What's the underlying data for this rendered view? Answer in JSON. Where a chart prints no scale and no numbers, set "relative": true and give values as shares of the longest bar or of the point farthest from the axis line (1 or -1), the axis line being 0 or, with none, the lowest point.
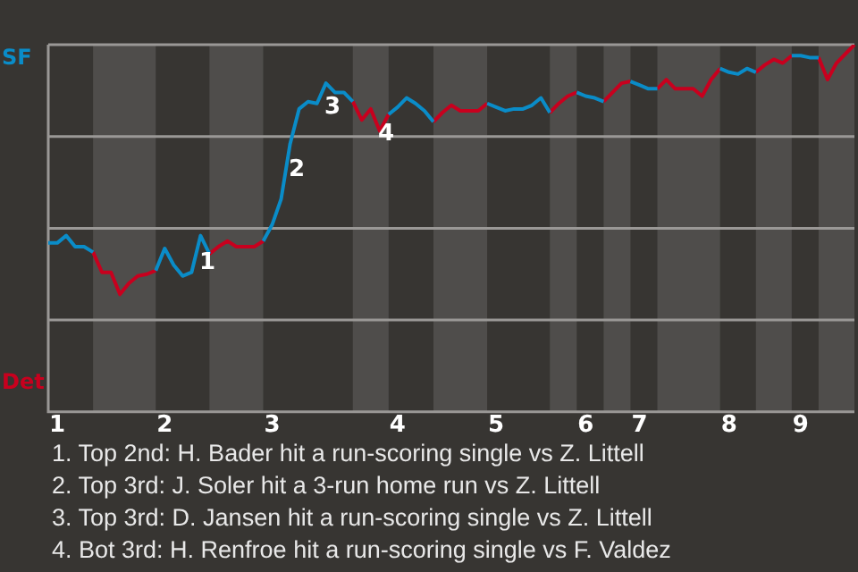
{
  "chart_data": {
    "type": "line",
    "relative": true,
    "grid": "y",
    "marker": "none",
    "line_style": "solid",
    "categories": [
      null,
      "1",
      null,
      null,
      null,
      null,
      null,
      null,
      null,
      null,
      null,
      null,
      null,
      "2",
      null,
      null,
      null,
      null,
      null,
      null,
      null,
      null,
      null,
      null,
      null,
      "3",
      null,
      null,
      null,
      null,
      null,
      null,
      null,
      null,
      null,
      null,
      null,
      null,
      null,
      "4",
      null,
      null,
      null,
      null,
      null,
      null,
      null,
      null,
      null,
      null,
      "5",
      null,
      null,
      null,
      null,
      null,
      null,
      null,
      null,
      null,
      "6",
      null,
      null,
      null,
      null,
      null,
      "7",
      null,
      null,
      null,
      null,
      null,
      null,
      null,
      null,
      null,
      "8",
      null,
      null,
      null,
      null,
      null,
      null,
      null,
      "9",
      null,
      null,
      null,
      null,
      null,
      null
    ],
    "series": [
      {
        "name": "SF",
        "color": "#0a8cc8",
        "values": [
          0.46,
          0.46,
          0.48,
          0.45,
          0.45,
          0.435,
          null,
          null,
          null,
          null,
          null,
          null,
          0.385,
          0.445,
          0.4,
          0.37,
          0.38,
          0.48,
          0.43,
          null,
          null,
          null,
          null,
          null,
          0.465,
          0.51,
          0.58,
          0.73,
          0.825,
          0.845,
          0.84,
          0.895,
          0.87,
          0.87,
          0.845,
          null,
          null,
          null,
          0.81,
          0.83,
          0.855,
          0.84,
          0.82,
          0.79,
          null,
          null,
          null,
          null,
          null,
          0.84,
          0.83,
          0.82,
          0.825,
          0.825,
          0.835,
          0.855,
          0.815,
          null,
          null,
          0.87,
          0.86,
          0.855,
          0.845,
          null,
          null,
          0.9,
          0.89,
          0.88,
          0.88,
          null,
          null,
          null,
          null,
          null,
          null,
          0.935,
          0.925,
          0.92,
          0.935,
          0.925,
          null,
          null,
          null,
          0.97,
          0.97,
          0.965,
          0.965,
          null,
          null,
          null,
          null
        ]
      },
      {
        "name": "Det",
        "color": "#c8001e",
        "values": [
          null,
          null,
          null,
          null,
          null,
          0.435,
          0.38,
          0.38,
          0.32,
          0.35,
          0.37,
          0.375,
          0.385,
          null,
          null,
          null,
          null,
          null,
          0.43,
          0.45,
          0.465,
          0.45,
          0.45,
          0.45,
          0.465,
          null,
          null,
          null,
          null,
          null,
          null,
          null,
          null,
          null,
          0.845,
          0.795,
          0.825,
          0.765,
          0.81,
          null,
          null,
          null,
          null,
          0.79,
          0.815,
          0.835,
          0.82,
          0.82,
          0.82,
          0.84,
          null,
          null,
          null,
          null,
          null,
          null,
          0.815,
          0.84,
          0.86,
          0.87,
          null,
          null,
          0.845,
          0.87,
          0.895,
          0.9,
          null,
          null,
          0.88,
          0.905,
          0.88,
          0.88,
          0.88,
          0.86,
          0.905,
          0.935,
          null,
          null,
          null,
          0.925,
          0.945,
          0.96,
          0.95,
          0.97,
          null,
          null,
          0.965,
          0.905,
          0.95,
          0.975,
          1
        ]
      }
    ],
    "annotations": [
      "1",
      "2",
      "3",
      "4",
      "1. Top 2nd: H. Bader hit a run-scoring single vs Z. Littell",
      "2. Top 3rd: J. Soler hit a 3-run home run vs Z. Littell",
      "3. Top 3rd: D. Jansen hit a run-scoring single vs Z. Littell",
      "4. Bot 3rd: H. Renfroe hit a run-scoring single vs F. Valdez"
    ]
  }
}
